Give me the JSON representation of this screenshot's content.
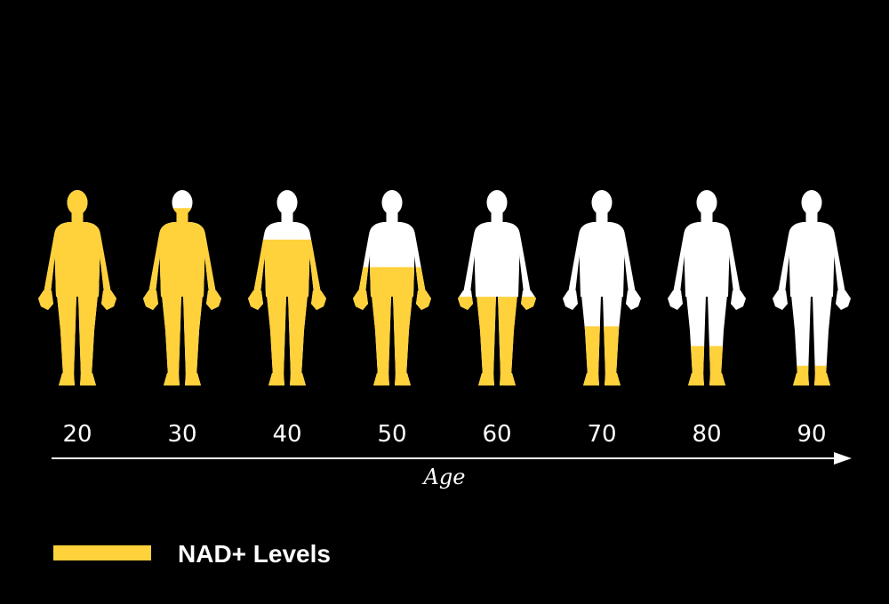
{
  "chart_data": {
    "type": "bar",
    "categories": [
      "20",
      "30",
      "40",
      "50",
      "60",
      "70",
      "80",
      "90"
    ],
    "series": [
      {
        "name": "NAD+ Levels",
        "values": [
          100,
          90,
          74,
          60,
          45,
          30,
          20,
          10
        ]
      }
    ],
    "xlabel": "Age",
    "ylabel": "",
    "ylim": [
      0,
      100
    ],
    "grid": false,
    "legend_position": "bottom-left"
  },
  "colors": {
    "background": "#000000",
    "fill": "#ffd13b",
    "empty": "#ffffff",
    "axis": "#ffffff"
  },
  "icons": {
    "figure": "human-silhouette-icon",
    "arrow": "arrow-right-icon"
  }
}
